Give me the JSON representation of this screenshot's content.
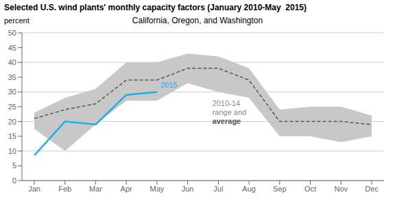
{
  "chart_data": {
    "type": "line",
    "title": "Selected U.S. wind plants' monthly capacity factors (January 2010-May  2015)",
    "subtitle": "California, Oregon, and Washington",
    "ylabel": "percent",
    "categories": [
      "Jan",
      "Feb",
      "Mar",
      "Apr",
      "May",
      "Jun",
      "Jul",
      "Aug",
      "Sep",
      "Oct",
      "Nov",
      "Dec"
    ],
    "series": [
      {
        "type": "range",
        "color": "#c8c8c8",
        "low": [
          17.5,
          10,
          19,
          27,
          27,
          33,
          30,
          28,
          15,
          15,
          13,
          15
        ],
        "high": [
          23,
          28,
          31,
          40,
          40,
          43,
          42,
          38,
          24,
          25,
          25,
          22
        ]
      },
      {
        "type": "line",
        "color": "#555555",
        "line_style": "dashed",
        "values": [
          21,
          24,
          26,
          34,
          34,
          38,
          38,
          34,
          20,
          20,
          20,
          19
        ]
      },
      {
        "type": "line",
        "color": "#1ab0e8",
        "line_style": "solid",
        "values": [
          8.5,
          20,
          19,
          29,
          30,
          null,
          null,
          null,
          null,
          null,
          null,
          null
        ]
      }
    ],
    "annotations": [
      {
        "text": "2015",
        "color": "#1ab0e8"
      },
      {
        "text": "2010-14\nrange and",
        "color": "#888888"
      },
      {
        "text": "average",
        "color": "#555555",
        "bold": true
      }
    ],
    "ylim": [
      0,
      50
    ],
    "yticks": [
      0,
      5,
      10,
      15,
      20,
      25,
      30,
      35,
      40,
      45,
      50
    ],
    "grid": true
  }
}
